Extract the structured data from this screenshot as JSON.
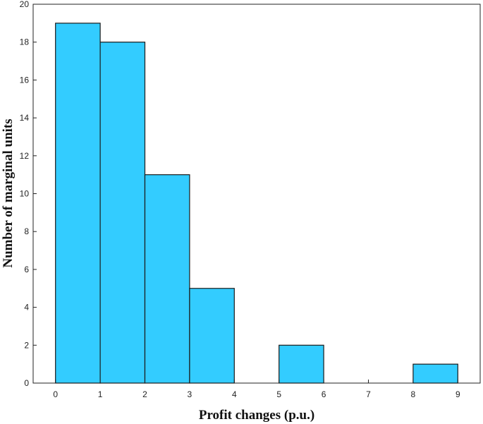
{
  "chart_data": {
    "type": "histogram",
    "bins": [
      {
        "x0": 0,
        "x1": 1,
        "count": 19
      },
      {
        "x0": 1,
        "x1": 2,
        "count": 18
      },
      {
        "x0": 2,
        "x1": 3,
        "count": 11
      },
      {
        "x0": 3,
        "x1": 4,
        "count": 5
      },
      {
        "x0": 5,
        "x1": 6,
        "count": 2
      },
      {
        "x0": 8,
        "x1": 9,
        "count": 1
      }
    ],
    "xlabel": "Profit changes (p.u.)",
    "ylabel": "Number of marginal units",
    "xlim": [
      -0.5,
      9.5
    ],
    "ylim": [
      0,
      20
    ],
    "xticks": [
      "0",
      "1",
      "2",
      "3",
      "4",
      "5",
      "6",
      "7",
      "8",
      "9"
    ],
    "yticks": [
      "0",
      "2",
      "4",
      "6",
      "8",
      "10",
      "12",
      "14",
      "16",
      "18",
      "20"
    ],
    "grid": false,
    "bar_color": "#33CCFF",
    "edge_color": "#1a1a1a"
  }
}
